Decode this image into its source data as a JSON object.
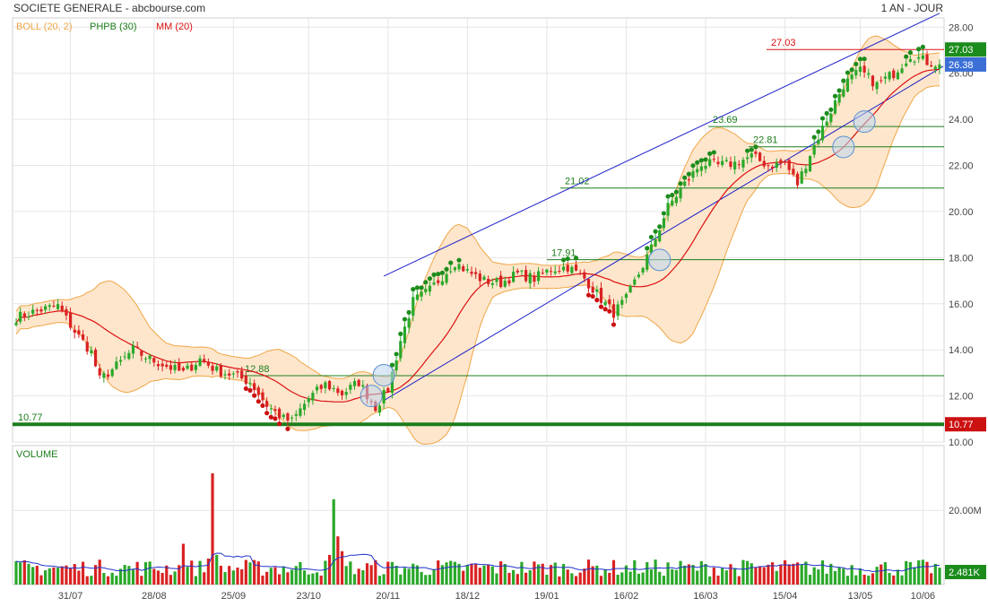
{
  "header": {
    "title": "SOCIETE GENERALE - abcbourse.com",
    "period": "1 AN - JOUR"
  },
  "legend": {
    "boll": "BOLL (20, 2)",
    "phpb": "PHPB (30)",
    "mm": "MM (20)"
  },
  "volume_panel": {
    "title": "VOLUME"
  },
  "colors": {
    "up": "#2aa82a",
    "down": "#d92222",
    "boll_fill": "#fde6cc",
    "boll_line": "#f0a646",
    "mm_line": "#dd1111",
    "channel": "#1f22c8",
    "hline": "#1c7d1c",
    "volume_avg": "#2233cc",
    "last_badge": "#3b6fd6",
    "grid": "#e6e6e6"
  },
  "chart_data": [
    {
      "type": "candlestick",
      "title": "SOCIETE GENERALE",
      "x_ticks": [
        "31/07",
        "28/08",
        "25/09",
        "23/10",
        "20/11",
        "18/12",
        "19/01",
        "16/02",
        "16/03",
        "15/04",
        "13/05",
        "10/06"
      ],
      "y_ticks": [
        "10.00",
        "12.00",
        "14.00",
        "16.00",
        "18.00",
        "20.00",
        "22.00",
        "24.00",
        "26.00",
        "28.00"
      ],
      "ylim": [
        10,
        28.4
      ],
      "grid": true,
      "last_price": "26.38",
      "current": "26.38",
      "path": [
        [
          0,
          15.4
        ],
        [
          5,
          15.7
        ],
        [
          10,
          15.9
        ],
        [
          14,
          14.8
        ],
        [
          18,
          13.9
        ],
        [
          20,
          12.7
        ],
        [
          24,
          13.3
        ],
        [
          28,
          14.0
        ],
        [
          32,
          13.6
        ],
        [
          36,
          13.3
        ],
        [
          40,
          13.0
        ],
        [
          44,
          13.6
        ],
        [
          48,
          13.1
        ],
        [
          52,
          12.9
        ],
        [
          56,
          12.6
        ],
        [
          60,
          11.6
        ],
        [
          64,
          11.0
        ],
        [
          66,
          10.9
        ],
        [
          70,
          11.9
        ],
        [
          74,
          12.5
        ],
        [
          78,
          12.1
        ],
        [
          82,
          12.6
        ],
        [
          86,
          11.5
        ],
        [
          89,
          12.3
        ],
        [
          92,
          14.4
        ],
        [
          95,
          16.1
        ],
        [
          99,
          16.6
        ],
        [
          102,
          17.2
        ],
        [
          105,
          17.8
        ],
        [
          108,
          17.4
        ],
        [
          112,
          17.0
        ],
        [
          116,
          16.9
        ],
        [
          120,
          17.3
        ],
        [
          124,
          17.1
        ],
        [
          128,
          17.5
        ],
        [
          132,
          17.6
        ],
        [
          136,
          17.1
        ],
        [
          140,
          16.2
        ],
        [
          143,
          15.6
        ],
        [
          146,
          16.2
        ],
        [
          149,
          17.3
        ],
        [
          152,
          18.4
        ],
        [
          156,
          20.2
        ],
        [
          160,
          21.2
        ],
        [
          164,
          22.1
        ],
        [
          168,
          22.0
        ],
        [
          172,
          22.1
        ],
        [
          176,
          22.4
        ],
        [
          180,
          22.0
        ],
        [
          184,
          22.1
        ],
        [
          187,
          21.2
        ],
        [
          190,
          22.5
        ],
        [
          194,
          24.0
        ],
        [
          198,
          25.5
        ],
        [
          202,
          26.1
        ],
        [
          206,
          25.5
        ],
        [
          210,
          26.0
        ],
        [
          214,
          26.8
        ],
        [
          218,
          26.5
        ],
        [
          221,
          26.38
        ]
      ],
      "annotations": [
        "27.03",
        "23.69",
        "22.81",
        "21.02",
        "17.91",
        "12.88",
        "10.77"
      ],
      "support_level": "10.77",
      "resistance_level": "27.03",
      "boll": {
        "period": 20,
        "k": 2
      },
      "phpb_period": 30,
      "mm_period": 20,
      "channel": {
        "start_date": "23/10",
        "end_date": "10/06",
        "upper": [
          17.2,
          28.6
        ],
        "lower": [
          11.8,
          26.3
        ]
      }
    },
    {
      "type": "bar",
      "title": "VOLUME",
      "y_ticks": [
        "20.00M"
      ],
      "last_volume": "2.481K",
      "current": "2.481K",
      "spikes": [
        {
          "date": "14/09",
          "value": 30
        },
        {
          "date": "05/11",
          "value": 23
        },
        {
          "date": "28/08",
          "value": 11
        }
      ]
    }
  ]
}
